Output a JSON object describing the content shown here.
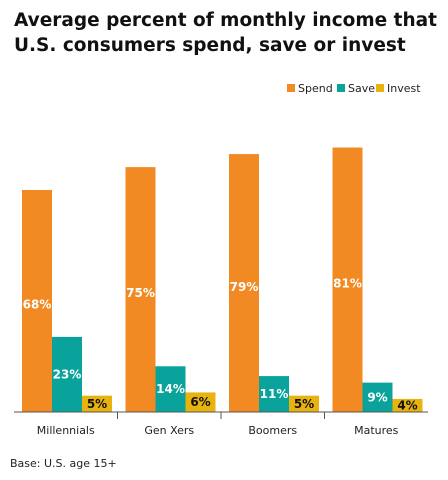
{
  "chart_data": {
    "type": "bar",
    "title": "Average percent of monthly income that U.S. consumers spend, save or invest",
    "title_lines": [
      "Average percent of monthly income that",
      "U.S. consumers spend, save or invest"
    ],
    "categories": [
      "Millennials",
      "Gen Xers",
      "Boomers",
      "Matures"
    ],
    "series": [
      {
        "name": "Spend",
        "color": "#f28a24",
        "values": [
          68,
          75,
          79,
          81
        ],
        "labels": [
          "68%",
          "75%",
          "79%",
          "81%"
        ],
        "label_color": "#ffffff"
      },
      {
        "name": "Save",
        "color": "#0aa39b",
        "values": [
          23,
          14,
          11,
          9
        ],
        "labels": [
          "23%",
          "14%",
          "11%",
          "9%"
        ],
        "label_color": "#ffffff"
      },
      {
        "name": "Invest",
        "color": "#e8b30f",
        "values": [
          5,
          6,
          5,
          4
        ],
        "labels": [
          "5%",
          "6%",
          "5%",
          "4%"
        ],
        "label_color": "#111111"
      }
    ],
    "ylim": [
      0,
      85
    ],
    "grid": false,
    "legend_position": "top-right",
    "xlabel": "",
    "ylabel": "",
    "footnote": "Base: U.S. age 15+"
  }
}
